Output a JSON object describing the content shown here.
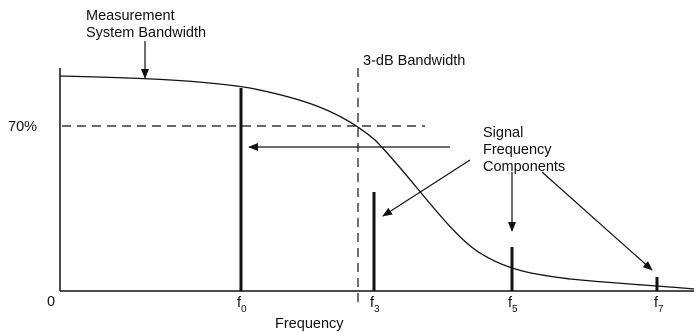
{
  "diagram": {
    "labels": {
      "measurement_line1": "Measurement",
      "measurement_line2": "System Bandwidth",
      "bandwidth_3db": "3-dB Bandwidth",
      "seventy_percent": "70%",
      "origin": "0",
      "frequency": "Frequency",
      "signal_line1": "Signal",
      "signal_line2": "Frequency",
      "signal_line3": "Components"
    },
    "ticks": [
      {
        "base": "f",
        "sub": "0"
      },
      {
        "base": "f",
        "sub": "3"
      },
      {
        "base": "f",
        "sub": "5"
      },
      {
        "base": "f",
        "sub": "7"
      }
    ],
    "colors": {
      "ink": "#111111",
      "background": "#ffffff"
    }
  }
}
